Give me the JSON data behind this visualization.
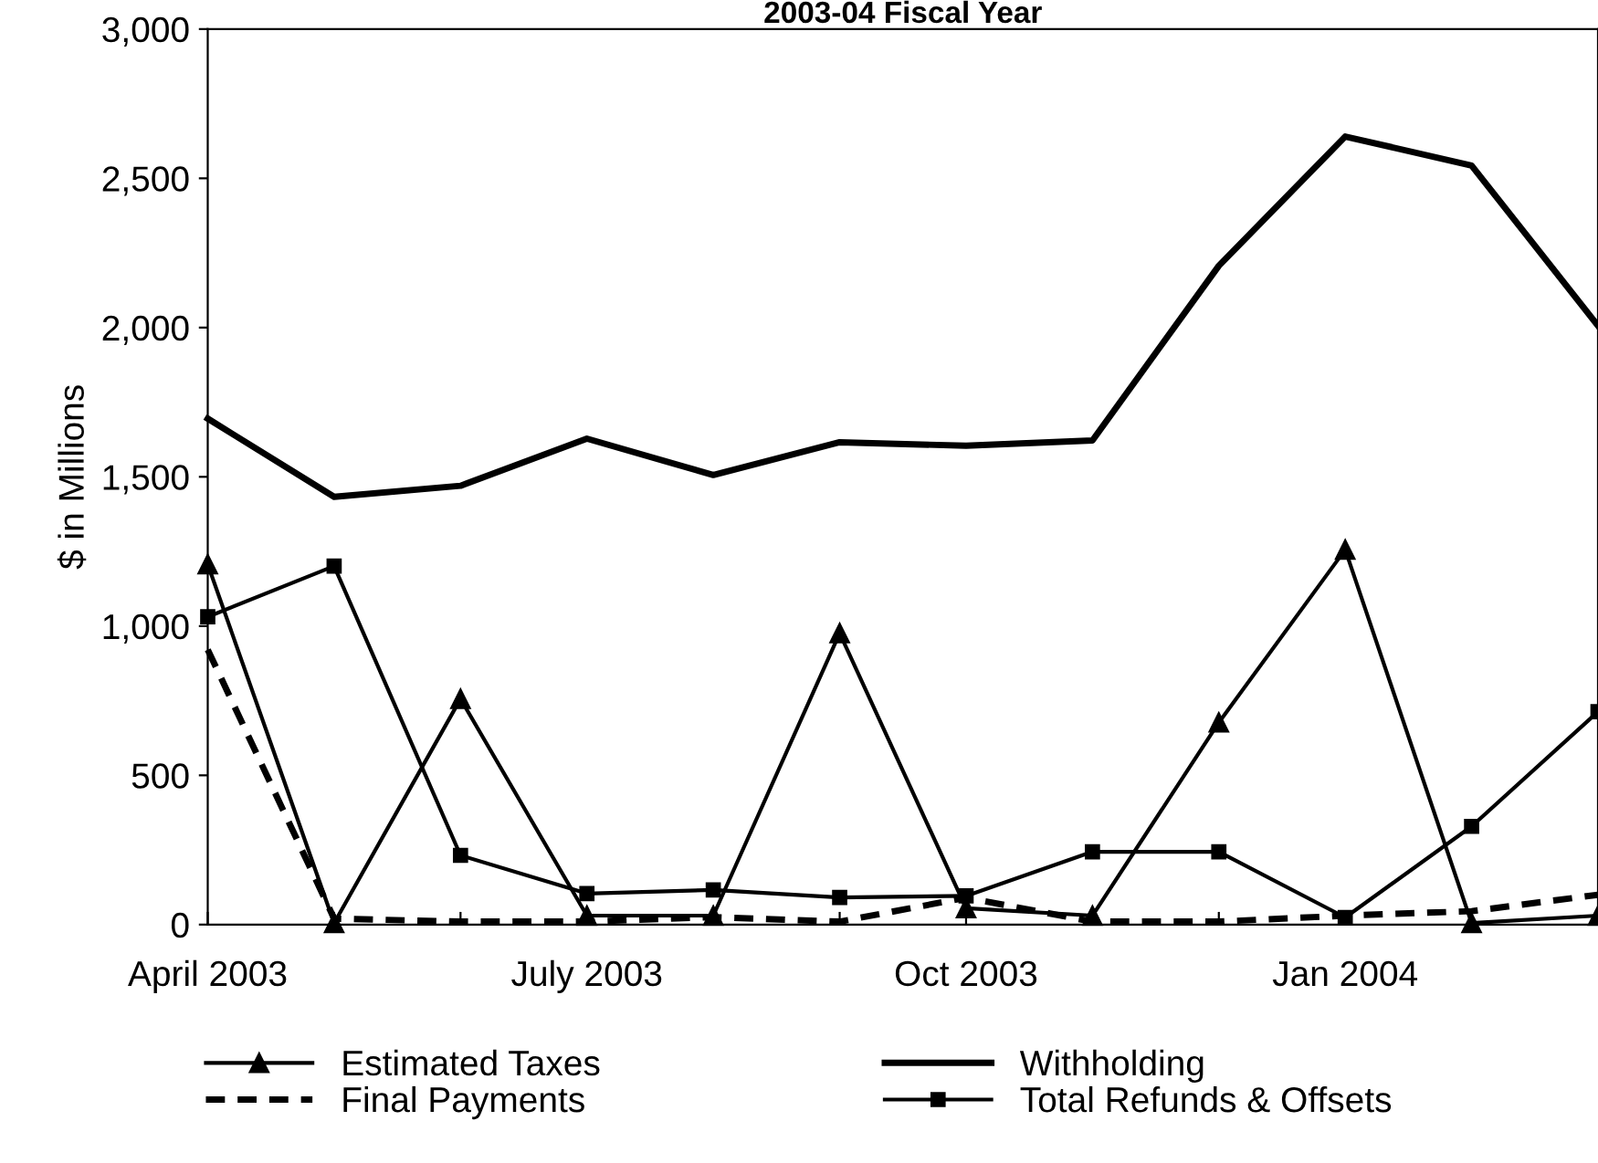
{
  "chart_data": {
    "type": "line",
    "title": "2003-04 Fiscal Year",
    "ylabel": "$ in Millions",
    "categories": [
      "April 2003",
      null,
      null,
      "July 2003",
      null,
      null,
      "Oct 2003",
      null,
      null,
      "Jan 2004",
      null,
      null
    ],
    "series": [
      {
        "name": "Estimated Taxes",
        "color": "#000000",
        "marker": "triangle",
        "line_style": "solid",
        "values": [
          1207,
          5,
          756,
          30,
          30,
          976,
          55,
          30,
          677,
          1256,
          5,
          30
        ]
      },
      {
        "name": "Final Payments",
        "color": "#000000",
        "marker": "none",
        "line_style": "dashed",
        "values": [
          921,
          20,
          10,
          10,
          25,
          10,
          90,
          10,
          10,
          30,
          45,
          100
        ]
      },
      {
        "name": "Withholding",
        "color": "#000000",
        "marker": "none",
        "line_style": "solid",
        "values": [
          1695,
          1433,
          1470,
          1628,
          1506,
          1616,
          1604,
          1622,
          2207,
          2640,
          2543,
          2006
        ]
      },
      {
        "name": "Total Refunds & Offsets",
        "color": "#000000",
        "marker": "square",
        "line_style": "solid",
        "values": [
          1031,
          1201,
          232,
          104,
          116,
          91,
          96,
          244,
          244,
          24,
          329,
          713
        ]
      }
    ],
    "ylim": [
      0,
      3000
    ],
    "yticks": [
      {
        "value": 0,
        "label": "0"
      },
      {
        "value": 500,
        "label": "500"
      },
      {
        "value": 1000,
        "label": "1,000"
      },
      {
        "value": 1500,
        "label": "1,500"
      },
      {
        "value": 2000,
        "label": "2,000"
      },
      {
        "value": 2500,
        "label": "2,500"
      },
      {
        "value": 3000,
        "label": "3,000"
      }
    ],
    "grid": false,
    "legend": "bottom"
  }
}
